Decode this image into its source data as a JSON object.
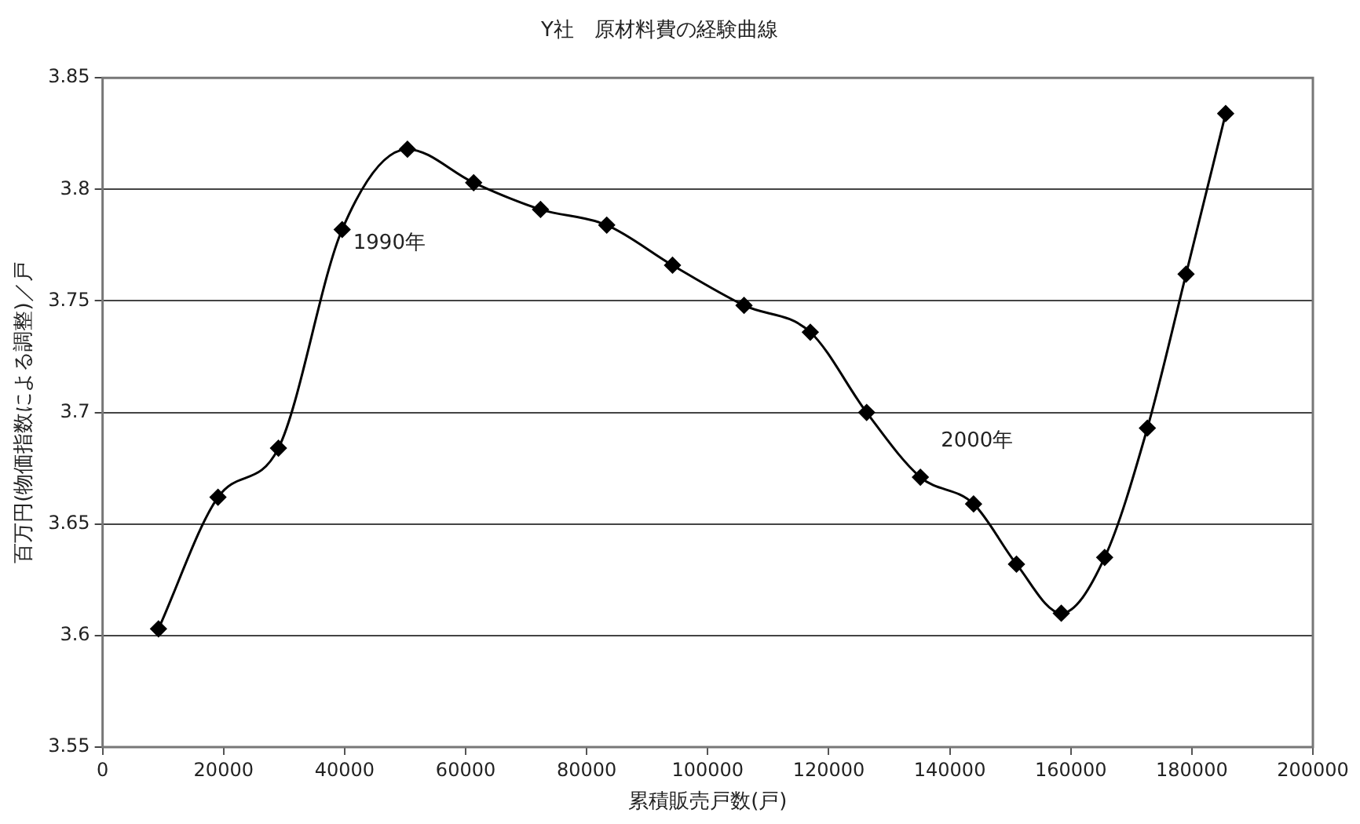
{
  "chart_data": {
    "type": "line",
    "title": "Y社　原材料費の経験曲線",
    "xlabel": "累積販売戸数(戸)",
    "ylabel": "百万円(物価指数による調整)／戸",
    "x": [
      9240,
      19070,
      29060,
      39590,
      50380,
      61320,
      72370,
      83310,
      94180,
      106000,
      116950,
      126260,
      135140,
      143930,
      151020,
      158420,
      165590,
      172650,
      179040,
      185590
    ],
    "series": [
      {
        "color": "#000000",
        "values": [
          3.603,
          3.662,
          3.684,
          3.782,
          3.818,
          3.803,
          3.791,
          3.784,
          3.766,
          3.748,
          3.736,
          3.7,
          3.671,
          3.659,
          3.632,
          3.61,
          3.635,
          3.693,
          3.762,
          3.834
        ]
      }
    ],
    "xlim": [
      0,
      200000
    ],
    "xticks": [
      0,
      20000,
      40000,
      60000,
      80000,
      100000,
      120000,
      140000,
      160000,
      180000,
      200000
    ],
    "ylim": [
      3.55,
      3.85
    ],
    "yticks": [
      3.55,
      3.6,
      3.65,
      3.7,
      3.75,
      3.8,
      3.85
    ],
    "grid": "y",
    "legend": false,
    "marker": "diamond",
    "line_style": "solid",
    "annotations": [
      {
        "text": "1990年",
        "x": 39590,
        "y": 3.782
      },
      {
        "text": "2000年",
        "x": 135140,
        "y": 3.671
      }
    ]
  }
}
